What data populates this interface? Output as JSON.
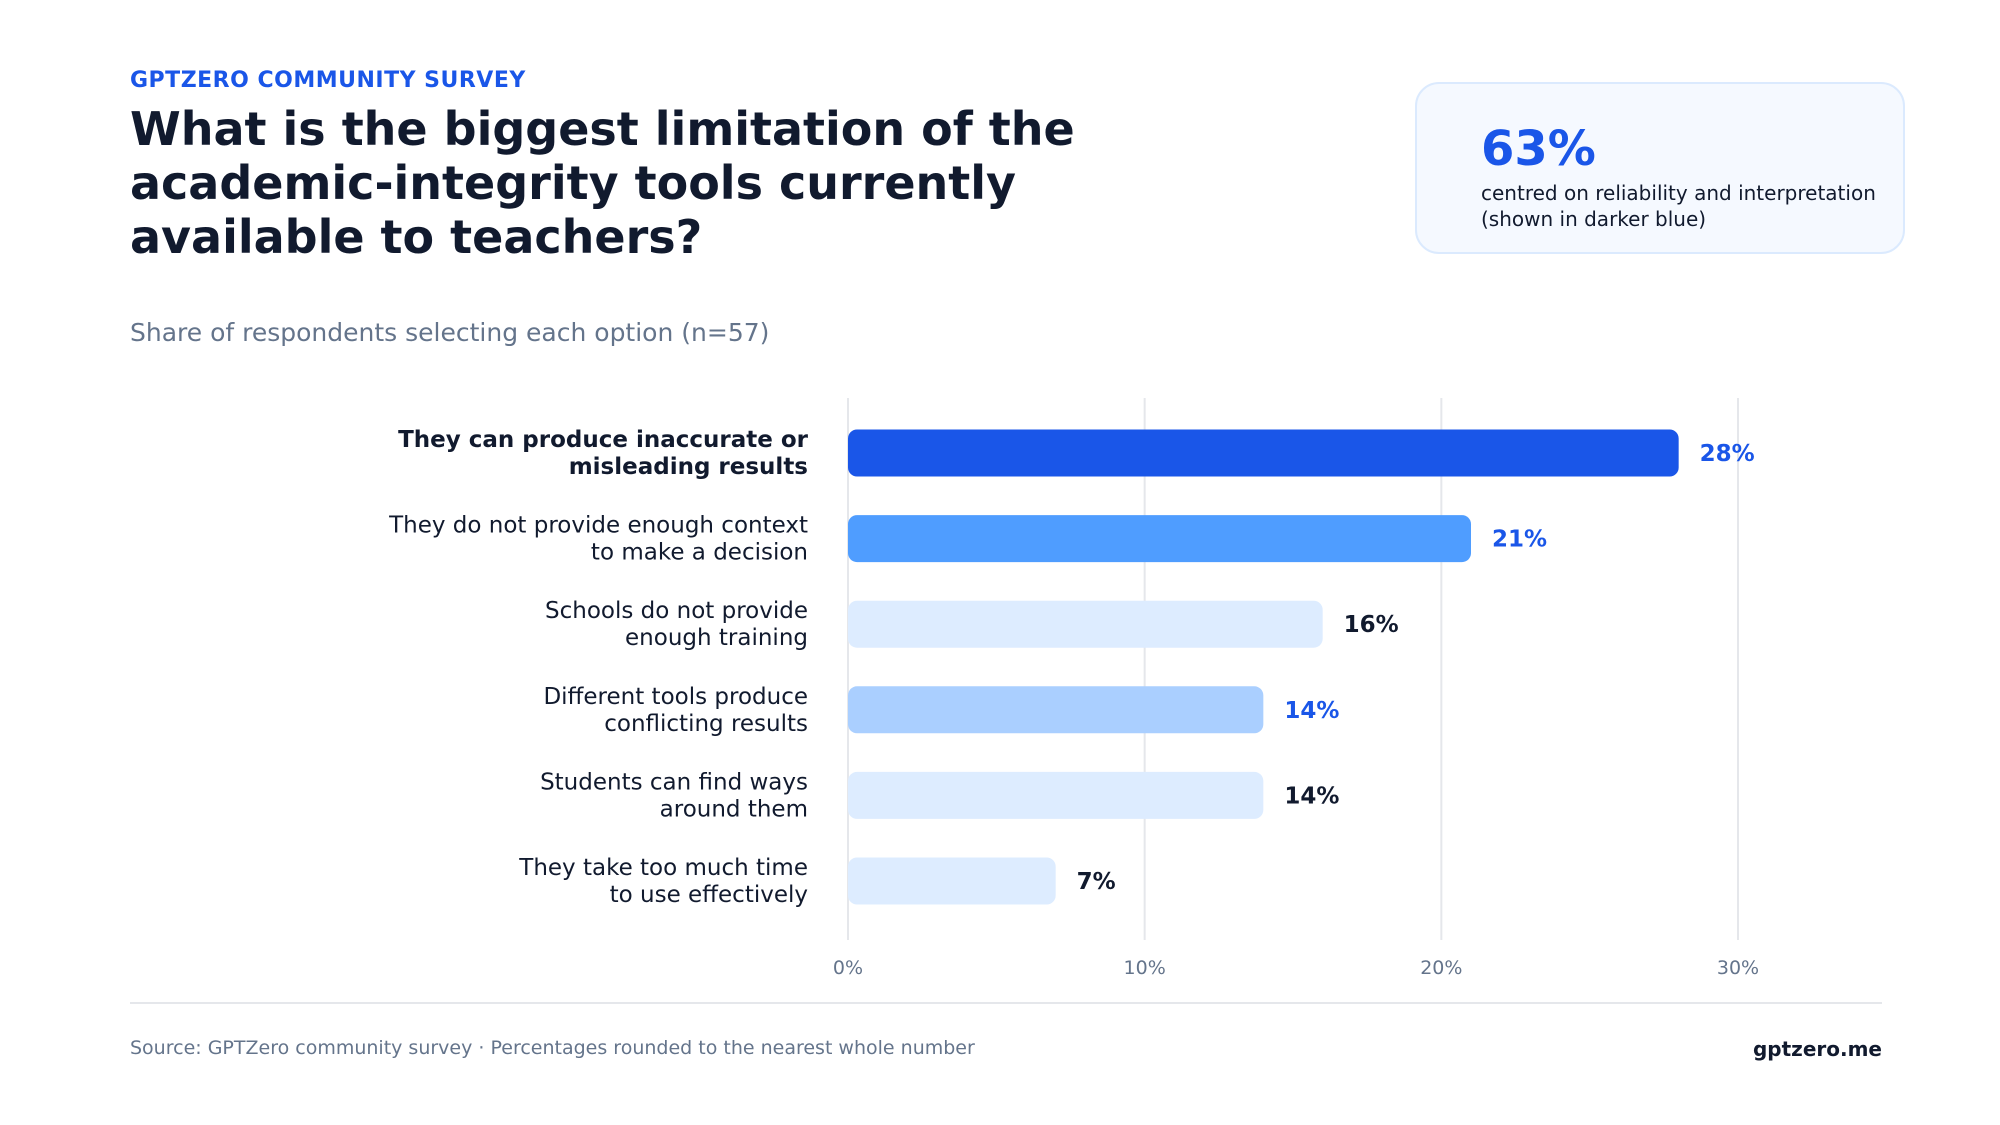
{
  "eyebrow": "GPTZERO COMMUNITY SURVEY",
  "title": "What is the biggest limitation of the academic-integrity tools currently available to teachers?",
  "subtitle": "Share of respondents selecting each option (n=57)",
  "stat_card": {
    "value": "63%",
    "caption": "centred on reliability and interpretation (shown in darker blue)"
  },
  "footer": {
    "source": "Source: GPTZero community survey · Percentages rounded to the nearest whole number",
    "brand": "gptzero.me"
  },
  "colors": {
    "accent": "#1a56e8",
    "bar_primary": "#1a56e8",
    "bar_secondary": "#4f9dff",
    "bar_tertiary": "#aacfff",
    "bar_muted": "#ddecff",
    "text_dark": "#111a2e",
    "text_muted": "#64748b"
  },
  "chart_data": {
    "type": "bar",
    "orientation": "horizontal",
    "categories": [
      [
        "They can produce inaccurate or",
        "misleading results"
      ],
      [
        "They do not provide enough context",
        "to make a decision"
      ],
      [
        "Schools do not provide",
        "enough training"
      ],
      [
        "Different tools produce",
        "conflicting results"
      ],
      [
        "Students can find ways",
        "around them"
      ],
      [
        "They take too much time",
        "to use effectively"
      ]
    ],
    "values": [
      28,
      21,
      16,
      14,
      14,
      7
    ],
    "value_labels": [
      "28%",
      "21%",
      "16%",
      "14%",
      "14%",
      "7%"
    ],
    "bar_colors": [
      "#1a56e8",
      "#4f9dff",
      "#ddecff",
      "#aacfff",
      "#ddecff",
      "#ddecff"
    ],
    "label_colors": [
      "#1a56e8",
      "#1a56e8",
      "#111a2e",
      "#1a56e8",
      "#111a2e",
      "#111a2e"
    ],
    "highlighted_category_index": 0,
    "x_ticks": [
      0,
      10,
      20,
      30
    ],
    "x_tick_labels": [
      "0%",
      "10%",
      "20%",
      "30%"
    ],
    "xlim": [
      0,
      35
    ],
    "grid": true
  }
}
